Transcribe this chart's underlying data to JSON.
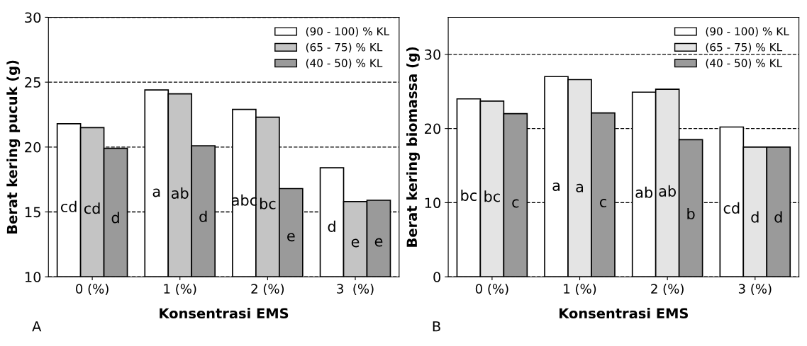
{
  "chart_data": [
    {
      "type": "bar",
      "categories": [
        "0 (%)",
        "1 (%)",
        "2 (%)",
        "3  (%)"
      ],
      "xlabel": "Konsentrasi EMS",
      "ylabel": "Berat kering pucuk (g)",
      "ylim": [
        10,
        30
      ],
      "yticks": [
        10,
        15,
        20,
        25,
        30
      ],
      "grid": "y",
      "legend": "top right",
      "annotations": [
        "A"
      ],
      "series": [
        {
          "name": "(90 - 100) % KL",
          "color": "#ffffff",
          "values": [
            21.8,
            24.4,
            22.9,
            18.4
          ],
          "value_labels": [
            "cd",
            "a",
            "abc",
            "d"
          ]
        },
        {
          "name": "(65 - 75) % KL",
          "color": "#c4c4c4",
          "values": [
            21.5,
            24.1,
            22.3,
            15.8
          ],
          "value_labels": [
            "cd",
            "ab",
            "bc",
            "e"
          ]
        },
        {
          "name": "(40 - 50) % KL",
          "color": "#9a9a9a",
          "values": [
            19.9,
            20.1,
            16.8,
            15.9
          ],
          "value_labels": [
            "d",
            "d",
            "e",
            "e"
          ]
        }
      ]
    },
    {
      "type": "bar",
      "categories": [
        "0 (%)",
        "1 (%)",
        "2 (%)",
        "3 (%)"
      ],
      "xlabel": "Konsentrasi EMS",
      "ylabel": "Berat kering biomassa (g)",
      "ylim": [
        0,
        35
      ],
      "yticks": [
        0,
        10,
        20,
        30
      ],
      "grid": "y",
      "legend": "top right",
      "annotations": [
        "B"
      ],
      "series": [
        {
          "name": "(90 - 100) % KL",
          "color": "#ffffff",
          "values": [
            24.0,
            27.0,
            24.9,
            20.2
          ],
          "value_labels": [
            "bc",
            "a",
            "ab",
            "cd"
          ]
        },
        {
          "name": "(65 - 75) % KL",
          "color": "#e4e4e4",
          "values": [
            23.7,
            26.6,
            25.3,
            17.5
          ],
          "value_labels": [
            "bc",
            "a",
            "ab",
            "d"
          ]
        },
        {
          "name": "(40 - 50) % KL",
          "color": "#9a9a9a",
          "values": [
            22.0,
            22.1,
            18.5,
            17.5
          ],
          "value_labels": [
            "c",
            "c",
            "b",
            "d"
          ]
        }
      ]
    }
  ]
}
